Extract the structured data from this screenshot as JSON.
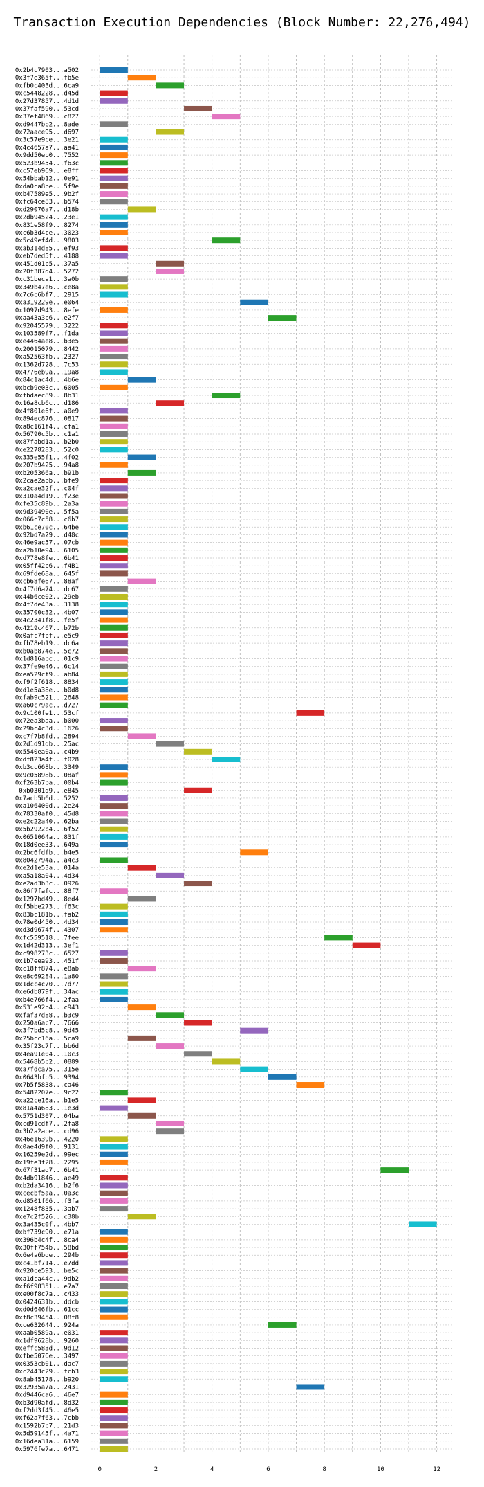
{
  "chart_data": {
    "type": "bar",
    "orientation": "horizontal-gantt",
    "title": "Transaction Execution Dependencies (Block Number: 22,276,494)",
    "xlabel": "",
    "ylabel": "",
    "xlim": [
      -0.3,
      12.6
    ],
    "xticks": [
      0,
      2,
      4,
      6,
      8,
      10,
      12
    ],
    "grid": true,
    "palette": [
      "#1f77b4",
      "#ff7f0e",
      "#2ca02c",
      "#d62728",
      "#9467bd",
      "#8c564b",
      "#e377c2",
      "#7f7f7f",
      "#bcbd22",
      "#17becf"
    ],
    "transactions": [
      {
        "label": "0x2b4c7903...a502",
        "start": 0,
        "end": 1
      },
      {
        "label": "0x3f7e365f...fb5e",
        "start": 1,
        "end": 2
      },
      {
        "label": "0xfb0c403d...6ca9",
        "start": 2,
        "end": 3
      },
      {
        "label": "0xc5448228...d45d",
        "start": 0,
        "end": 1
      },
      {
        "label": "0x27d37857...4d1d",
        "start": 0,
        "end": 1
      },
      {
        "label": "0x37faf590...53cd",
        "start": 3,
        "end": 4
      },
      {
        "label": "0x37ef4869...c827",
        "start": 4,
        "end": 5
      },
      {
        "label": "0xd9447bb2...8ade",
        "start": 0,
        "end": 1
      },
      {
        "label": "0x72aace95...d697",
        "start": 2,
        "end": 3
      },
      {
        "label": "0x3c57e9ce...3e21",
        "start": 0,
        "end": 1
      },
      {
        "label": "0x4c4657a7...aa41",
        "start": 0,
        "end": 1
      },
      {
        "label": "0x9dd50eb0...7552",
        "start": 0,
        "end": 1
      },
      {
        "label": "0x523b9454...f63c",
        "start": 0,
        "end": 1
      },
      {
        "label": "0xc57eb969...e8ff",
        "start": 0,
        "end": 1
      },
      {
        "label": "0x54bbab12...0e91",
        "start": 0,
        "end": 1
      },
      {
        "label": "0xda0ca8be...5f9e",
        "start": 0,
        "end": 1
      },
      {
        "label": "0xb47589e5...9b2f",
        "start": 0,
        "end": 1
      },
      {
        "label": "0xfc64ce83...b574",
        "start": 0,
        "end": 1
      },
      {
        "label": "0xd29076a7...d18b",
        "start": 1,
        "end": 2
      },
      {
        "label": "0x2db94524...23e1",
        "start": 0,
        "end": 1
      },
      {
        "label": "0x831e58f9...8274",
        "start": 0,
        "end": 1
      },
      {
        "label": "0xc6b3d4ce...3023",
        "start": 0,
        "end": 1
      },
      {
        "label": "0x5c49ef4d...9803",
        "start": 4,
        "end": 5
      },
      {
        "label": "0xab314d85...ef93",
        "start": 0,
        "end": 1
      },
      {
        "label": "0xeb7ded5f...4188",
        "start": 0,
        "end": 1
      },
      {
        "label": "0x451d01b5...37a5",
        "start": 2,
        "end": 3
      },
      {
        "label": "0x20f387d4...5272",
        "start": 2,
        "end": 3
      },
      {
        "label": "0xc31beca1...3a0b",
        "start": 0,
        "end": 1
      },
      {
        "label": "0x349b47e6...ce8a",
        "start": 0,
        "end": 1
      },
      {
        "label": "0x7c6c6bf7...2915",
        "start": 0,
        "end": 1
      },
      {
        "label": "0xa319229e...e064",
        "start": 5,
        "end": 6
      },
      {
        "label": "0x1097d943...8efe",
        "start": 0,
        "end": 1
      },
      {
        "label": "0xaa43a3b6...e2f7",
        "start": 6,
        "end": 7
      },
      {
        "label": "0x92045579...3222",
        "start": 0,
        "end": 1
      },
      {
        "label": "0x103589f7...f1da",
        "start": 0,
        "end": 1
      },
      {
        "label": "0xe4464ae8...b3e5",
        "start": 0,
        "end": 1
      },
      {
        "label": "0x20015079...8442",
        "start": 0,
        "end": 1
      },
      {
        "label": "0xa52563fb...2327",
        "start": 0,
        "end": 1
      },
      {
        "label": "0x1362d728...7c53",
        "start": 0,
        "end": 1
      },
      {
        "label": "0x4776eb9a...19a8",
        "start": 0,
        "end": 1
      },
      {
        "label": "0x84c1ac4d...4b6e",
        "start": 1,
        "end": 2
      },
      {
        "label": "0xbcb9e03c...6005",
        "start": 0,
        "end": 1
      },
      {
        "label": "0xfbdaec89...8b31",
        "start": 4,
        "end": 5
      },
      {
        "label": "0x16a8cb6c...d186",
        "start": 2,
        "end": 3
      },
      {
        "label": "0x4f801e6f...a0e9",
        "start": 0,
        "end": 1
      },
      {
        "label": "0x894ec876...0817",
        "start": 0,
        "end": 1
      },
      {
        "label": "0xa8c161f4...cfa1",
        "start": 0,
        "end": 1
      },
      {
        "label": "0x56790c5b...c1a1",
        "start": 0,
        "end": 1
      },
      {
        "label": "0x87fabd1a...b2b0",
        "start": 0,
        "end": 1
      },
      {
        "label": "0xe2278283...52c0",
        "start": 0,
        "end": 1
      },
      {
        "label": "0x335e55f1...4f02",
        "start": 1,
        "end": 2
      },
      {
        "label": "0x207b9425...94a8",
        "start": 0,
        "end": 1
      },
      {
        "label": "0xb205366a...b91b",
        "start": 1,
        "end": 2
      },
      {
        "label": "0x2cae2abb...bfe9",
        "start": 0,
        "end": 1
      },
      {
        "label": "0xa2cae32f...c04f",
        "start": 0,
        "end": 1
      },
      {
        "label": "0x310a4d19...f23e",
        "start": 0,
        "end": 1
      },
      {
        "label": "0xfe35c89b...2a3a",
        "start": 0,
        "end": 1
      },
      {
        "label": "0x9d39490e...5f5a",
        "start": 0,
        "end": 1
      },
      {
        "label": "0x066c7c58...c6b7",
        "start": 0,
        "end": 1
      },
      {
        "label": "0xb61ce70c...64be",
        "start": 0,
        "end": 1
      },
      {
        "label": "0x92bd7a29...d48c",
        "start": 0,
        "end": 1
      },
      {
        "label": "0x46e9ac57...07cb",
        "start": 0,
        "end": 1
      },
      {
        "label": "0xa2b10e94...6105",
        "start": 0,
        "end": 1
      },
      {
        "label": "0xd778e8fe...6b41",
        "start": 0,
        "end": 1
      },
      {
        "label": "0x05ff42b6...f4B1",
        "start": 0,
        "end": 1
      },
      {
        "label": "0x69fde68a...645f",
        "start": 0,
        "end": 1
      },
      {
        "label": "0xcb68fe67...88af",
        "start": 1,
        "end": 2
      },
      {
        "label": "0x4f7d6a74...dc67",
        "start": 0,
        "end": 1
      },
      {
        "label": "0x44b6ce02...29eb",
        "start": 0,
        "end": 1
      },
      {
        "label": "0x4f7de43a...3138",
        "start": 0,
        "end": 1
      },
      {
        "label": "0x35700c32...4b07",
        "start": 0,
        "end": 1
      },
      {
        "label": "0x4c2341f8...fe5f",
        "start": 0,
        "end": 1
      },
      {
        "label": "0x4219c467...b72b",
        "start": 0,
        "end": 1
      },
      {
        "label": "0x0afc7fbf...e5c9",
        "start": 0,
        "end": 1
      },
      {
        "label": "0xfb78eb19...dc6a",
        "start": 0,
        "end": 1
      },
      {
        "label": "0xb0ab874e...5c72",
        "start": 0,
        "end": 1
      },
      {
        "label": "0x1d816abc...01c9",
        "start": 0,
        "end": 1
      },
      {
        "label": "0x37fe9e46...6c14",
        "start": 0,
        "end": 1
      },
      {
        "label": "0xea529cf9...ab84",
        "start": 0,
        "end": 1
      },
      {
        "label": "0xf9f2f618...8834",
        "start": 0,
        "end": 1
      },
      {
        "label": "0xd1e5a38e...b0d8",
        "start": 0,
        "end": 1
      },
      {
        "label": "0xfab9c521...2648",
        "start": 0,
        "end": 1
      },
      {
        "label": "0xa60c79ac...d727",
        "start": 0,
        "end": 1
      },
      {
        "label": "0x9c100fe1...53cf",
        "start": 7,
        "end": 8
      },
      {
        "label": "0x72ea3baa...b000",
        "start": 0,
        "end": 1
      },
      {
        "label": "0x29bc4c3d...1626",
        "start": 0,
        "end": 1
      },
      {
        "label": "0xc7f7b8fd...2894",
        "start": 1,
        "end": 2
      },
      {
        "label": "0x2d1d91db...25ac",
        "start": 2,
        "end": 3
      },
      {
        "label": "0x5540ea0a...c4b9",
        "start": 3,
        "end": 4
      },
      {
        "label": "0xdf823a4f...f028",
        "start": 4,
        "end": 5
      },
      {
        "label": "0xb3cc668b...3349",
        "start": 0,
        "end": 1
      },
      {
        "label": "0x9c05898b...08af",
        "start": 0,
        "end": 1
      },
      {
        "label": "0xf263b7ba...00b4",
        "start": 0,
        "end": 1
      },
      {
        "label": "0xb0301d9...e845",
        "start": 3,
        "end": 4
      },
      {
        "label": "0x7acb5b6d...5252",
        "start": 0,
        "end": 1
      },
      {
        "label": "0xa106400d...2e24",
        "start": 0,
        "end": 1
      },
      {
        "label": "0x78330af0...45d8",
        "start": 0,
        "end": 1
      },
      {
        "label": "0xe2c22a40...62ba",
        "start": 0,
        "end": 1
      },
      {
        "label": "0x5b2922b4...6f52",
        "start": 0,
        "end": 1
      },
      {
        "label": "0x0651064a...831f",
        "start": 0,
        "end": 1
      },
      {
        "label": "0x18d0ee33...649a",
        "start": 0,
        "end": 1
      },
      {
        "label": "0x2bc6fdfb...b4e5",
        "start": 5,
        "end": 6
      },
      {
        "label": "0x8042794a...a4c3",
        "start": 0,
        "end": 1
      },
      {
        "label": "0xe2d1e53a...014a",
        "start": 1,
        "end": 2
      },
      {
        "label": "0xa5a18a04...4d34",
        "start": 2,
        "end": 3
      },
      {
        "label": "0xe2ad3b3c...0926",
        "start": 3,
        "end": 4
      },
      {
        "label": "0x86f7fafc...88f7",
        "start": 0,
        "end": 1
      },
      {
        "label": "0x1297bd49...8ed4",
        "start": 1,
        "end": 2
      },
      {
        "label": "0xf5bbe273...f63c",
        "start": 0,
        "end": 1
      },
      {
        "label": "0x83bc181b...fab2",
        "start": 0,
        "end": 1
      },
      {
        "label": "0x78e0d450...4d34",
        "start": 0,
        "end": 1
      },
      {
        "label": "0xd3d9674f...4307",
        "start": 0,
        "end": 1
      },
      {
        "label": "0xfc559518...7fee",
        "start": 8,
        "end": 9
      },
      {
        "label": "0x1d42d313...3ef1",
        "start": 9,
        "end": 10
      },
      {
        "label": "0xc998273c...6527",
        "start": 0,
        "end": 1
      },
      {
        "label": "0x1b7eea93...451f",
        "start": 0,
        "end": 1
      },
      {
        "label": "0xc18ff874...e8ab",
        "start": 1,
        "end": 2
      },
      {
        "label": "0xe8c69284...1a80",
        "start": 0,
        "end": 1
      },
      {
        "label": "0x1dcc4c70...7d77",
        "start": 0,
        "end": 1
      },
      {
        "label": "0xe6db879f...34ac",
        "start": 0,
        "end": 1
      },
      {
        "label": "0xb4e766f4...2faa",
        "start": 0,
        "end": 1
      },
      {
        "label": "0x531e92b4...c943",
        "start": 1,
        "end": 2
      },
      {
        "label": "0xfaf37d88...b3c9",
        "start": 2,
        "end": 3
      },
      {
        "label": "0x250a6ac7...7666",
        "start": 3,
        "end": 4
      },
      {
        "label": "0x3f7bd5c8...9d45",
        "start": 5,
        "end": 6
      },
      {
        "label": "0x25bcc16a...5ca9",
        "start": 1,
        "end": 2
      },
      {
        "label": "0x35f23c7f...bb6d",
        "start": 2,
        "end": 3
      },
      {
        "label": "0x4ea91e04...10c3",
        "start": 3,
        "end": 4
      },
      {
        "label": "0x5468b5c2...0889",
        "start": 4,
        "end": 5
      },
      {
        "label": "0xa7fdca75...315e",
        "start": 5,
        "end": 6
      },
      {
        "label": "0x0643bfb5...9394",
        "start": 6,
        "end": 7
      },
      {
        "label": "0x7b5f5838...ca46",
        "start": 7,
        "end": 8
      },
      {
        "label": "0x5482207e...9c22",
        "start": 0,
        "end": 1
      },
      {
        "label": "0xa22ce16a...b1e5",
        "start": 1,
        "end": 2
      },
      {
        "label": "0x81a4a683...1e3d",
        "start": 0,
        "end": 1
      },
      {
        "label": "0x5751d307...04ba",
        "start": 1,
        "end": 2
      },
      {
        "label": "0xcd91cdf7...2fa8",
        "start": 2,
        "end": 3
      },
      {
        "label": "0x3b2a2abe...cd96",
        "start": 2,
        "end": 3
      },
      {
        "label": "0x46e1639b...4220",
        "start": 0,
        "end": 1
      },
      {
        "label": "0x0ae4d9f0...9131",
        "start": 0,
        "end": 1
      },
      {
        "label": "0x16259e2d...99ec",
        "start": 0,
        "end": 1
      },
      {
        "label": "0x19fe3f28...2295",
        "start": 0,
        "end": 1
      },
      {
        "label": "0x67f31ad7...6b41",
        "start": 10,
        "end": 11
      },
      {
        "label": "0x4db91846...ae49",
        "start": 0,
        "end": 1
      },
      {
        "label": "0xb2da3416...b2f6",
        "start": 0,
        "end": 1
      },
      {
        "label": "0xcecbf5aa...0a3c",
        "start": 0,
        "end": 1
      },
      {
        "label": "0xd8501f66...f3fa",
        "start": 0,
        "end": 1
      },
      {
        "label": "0x1248f835...3ab7",
        "start": 0,
        "end": 1
      },
      {
        "label": "0xe7c2f526...c38b",
        "start": 1,
        "end": 2
      },
      {
        "label": "0x3a435c0f...4bb7",
        "start": 11,
        "end": 12
      },
      {
        "label": "0xbf739c90...e71a",
        "start": 0,
        "end": 1
      },
      {
        "label": "0x396b4c4f...8ca4",
        "start": 0,
        "end": 1
      },
      {
        "label": "0x30ff754b...58bd",
        "start": 0,
        "end": 1
      },
      {
        "label": "0x6e4a6bde...294b",
        "start": 0,
        "end": 1
      },
      {
        "label": "0xc41bf714...e7dd",
        "start": 0,
        "end": 1
      },
      {
        "label": "0x920ce593...be5c",
        "start": 0,
        "end": 1
      },
      {
        "label": "0xa1dca44c...9db2",
        "start": 0,
        "end": 1
      },
      {
        "label": "0xf6f98351...e7a7",
        "start": 0,
        "end": 1
      },
      {
        "label": "0xe00f8c7a...c433",
        "start": 0,
        "end": 1
      },
      {
        "label": "0x0424631b...ddcb",
        "start": 0,
        "end": 1
      },
      {
        "label": "0xd0d646fb...61cc",
        "start": 0,
        "end": 1
      },
      {
        "label": "0xf8c39454...08f8",
        "start": 0,
        "end": 1
      },
      {
        "label": "0xce632644...924a",
        "start": 6,
        "end": 7
      },
      {
        "label": "0xaab0589a...e031",
        "start": 0,
        "end": 1
      },
      {
        "label": "0x1df9628b...9260",
        "start": 0,
        "end": 1
      },
      {
        "label": "0xeffc583d...9d12",
        "start": 0,
        "end": 1
      },
      {
        "label": "0xfbe5076e...3497",
        "start": 0,
        "end": 1
      },
      {
        "label": "0x0353cb01...dac7",
        "start": 0,
        "end": 1
      },
      {
        "label": "0xc2443c29...fcb3",
        "start": 0,
        "end": 1
      },
      {
        "label": "0x8ab45178...b920",
        "start": 0,
        "end": 1
      },
      {
        "label": "0x32935a7a...2431",
        "start": 7,
        "end": 8
      },
      {
        "label": "0xd9446ca6...46e7",
        "start": 0,
        "end": 1
      },
      {
        "label": "0xb3d90afd...8d32",
        "start": 0,
        "end": 1
      },
      {
        "label": "0xf2dd3f45...46e5",
        "start": 0,
        "end": 1
      },
      {
        "label": "0xf62a7f63...7cbb",
        "start": 0,
        "end": 1
      },
      {
        "label": "0x1592b7c7...21d3",
        "start": 0,
        "end": 1
      },
      {
        "label": "0x5d59145f...4a71",
        "start": 0,
        "end": 1
      },
      {
        "label": "0x16dea31a...6159",
        "start": 0,
        "end": 1
      },
      {
        "label": "0x5976fe7a...6471",
        "start": 0,
        "end": 1
      }
    ]
  }
}
